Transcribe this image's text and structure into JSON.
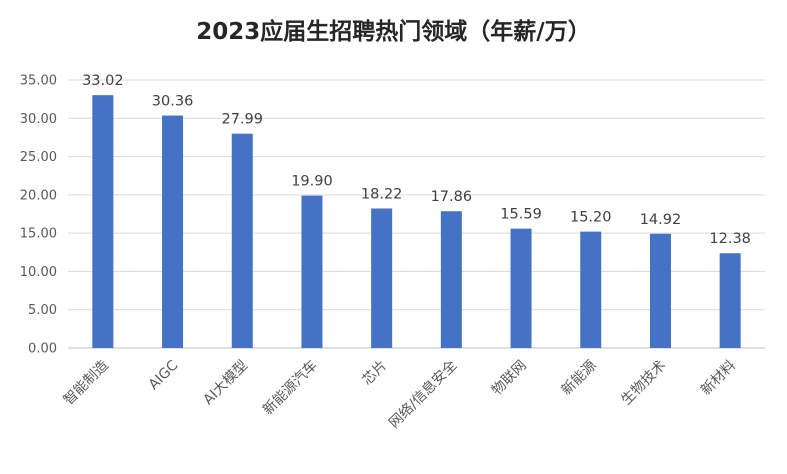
{
  "chart_data": {
    "type": "bar",
    "title": "2023应届生招聘热门领域（年薪/万）",
    "categories": [
      "智能制造",
      "AIGC",
      "AI大模型",
      "新能源汽车",
      "芯片",
      "网络/信息安全",
      "物联网",
      "新能源",
      "生物技术",
      "新材料"
    ],
    "values": [
      33.02,
      30.36,
      27.99,
      19.9,
      18.22,
      17.86,
      15.59,
      15.2,
      14.92,
      12.38
    ],
    "data_labels": [
      "33.02",
      "30.36",
      "27.99",
      "19.90",
      "18.22",
      "17.86",
      "15.59",
      "15.20",
      "14.92",
      "12.38"
    ],
    "y_ticks": [
      "0.00",
      "5.00",
      "10.00",
      "15.00",
      "20.00",
      "25.00",
      "30.00",
      "35.00"
    ],
    "ylim": [
      0,
      35
    ],
    "grid": true,
    "legend": "none",
    "bar_color": "#4472c4"
  }
}
